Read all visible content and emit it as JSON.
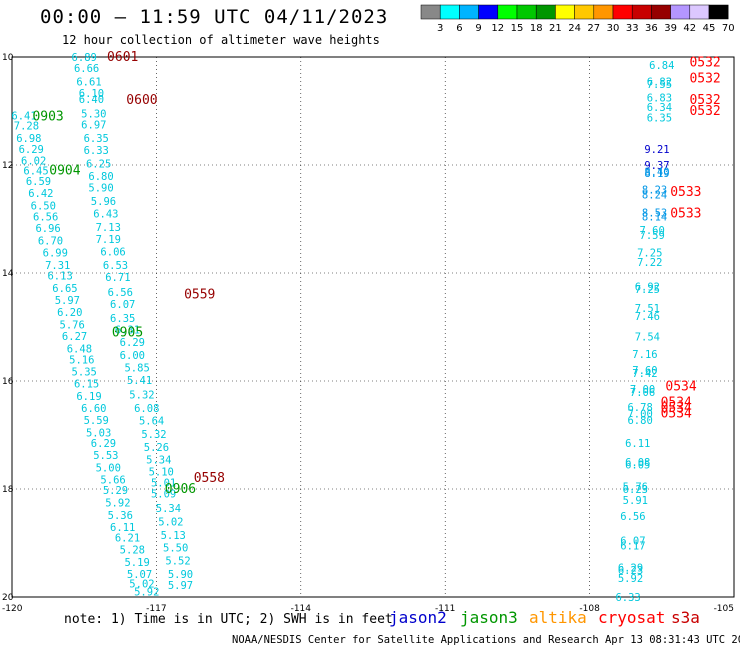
{
  "header": {
    "title": "00:00 – 11:59 UTC 04/11/2023",
    "subtitle": "12 hour collection of altimeter wave heights"
  },
  "legend": {
    "colors": [
      "#888888",
      "#00ffff",
      "#00b4ff",
      "#0000ff",
      "#00ff00",
      "#00c800",
      "#009600",
      "#ffff00",
      "#ffc800",
      "#ff9600",
      "#ff0000",
      "#c80000",
      "#960000",
      "#b496ff",
      "#dcc8ff",
      "#000000"
    ],
    "labels": [
      "3",
      "6",
      "9",
      "12",
      "15",
      "18",
      "21",
      "24",
      "27",
      "30",
      "33",
      "36",
      "39",
      "42",
      "45",
      "70",
      "(ft)"
    ]
  },
  "axes": {
    "lat_labels": [
      "10",
      "12",
      "14",
      "16",
      "18",
      "20"
    ],
    "lon_labels": [
      "-120",
      "-117",
      "-114",
      "-111",
      "-108",
      "-105"
    ]
  },
  "footnote": "note:  1) Time is in UTC; 2) SWH is in feet",
  "satellites": [
    {
      "name": "jason2",
      "color": "#0000cc"
    },
    {
      "name": "jason3",
      "color": "#009600"
    },
    {
      "name": "altika",
      "color": "#ff9600"
    },
    {
      "name": "cryosat",
      "color": "#ff0000"
    },
    {
      "name": "s3a",
      "color": "#c80000"
    }
  ],
  "credit": "NOAA/NESDIS Center for Satellite Applications and Research   Apr 13 08:31:43 UTC 2023",
  "map_data": {
    "time_labels": [
      {
        "text": "0601",
        "lat": 10.0,
        "lon": -117.7,
        "color": "#960000"
      },
      {
        "text": "0600",
        "lat": 10.8,
        "lon": -117.3,
        "color": "#960000"
      },
      {
        "text": "0903",
        "lat": 11.1,
        "lon": -119.25,
        "color": "#009600"
      },
      {
        "text": "0904",
        "lat": 12.1,
        "lon": -118.9,
        "color": "#009600"
      },
      {
        "text": "0559",
        "lat": 14.4,
        "lon": -116.1,
        "color": "#960000"
      },
      {
        "text": "0905",
        "lat": 15.1,
        "lon": -117.6,
        "color": "#009600"
      },
      {
        "text": "0558",
        "lat": 17.8,
        "lon": -115.9,
        "color": "#960000"
      },
      {
        "text": "0906",
        "lat": 18.0,
        "lon": -116.5,
        "color": "#009600"
      },
      {
        "text": "0532",
        "lat": 10.1,
        "lon": -105.6,
        "color": "#ff0000"
      },
      {
        "text": "0532",
        "lat": 10.4,
        "lon": -105.6,
        "color": "#ff0000"
      },
      {
        "text": "0532",
        "lat": 10.8,
        "lon": -105.6,
        "color": "#ff0000"
      },
      {
        "text": "0532",
        "lat": 11.0,
        "lon": -105.6,
        "color": "#ff0000"
      },
      {
        "text": "0533",
        "lat": 12.5,
        "lon": -106.0,
        "color": "#ff0000"
      },
      {
        "text": "0533",
        "lat": 12.9,
        "lon": -106.0,
        "color": "#ff0000"
      },
      {
        "text": "0534",
        "lat": 16.1,
        "lon": -106.1,
        "color": "#ff0000"
      },
      {
        "text": "0534",
        "lat": 16.4,
        "lon": -106.2,
        "color": "#ff0000"
      },
      {
        "text": "0534",
        "lat": 16.5,
        "lon": -106.2,
        "color": "#ff0000"
      },
      {
        "text": "0534",
        "lat": 16.6,
        "lon": -106.2,
        "color": "#ff0000"
      }
    ],
    "tracks": [
      {
        "name": "track-0601-0558",
        "color": "#00c8dc",
        "points": [
          {
            "v": "6.89",
            "lat": 10.0,
            "lon": -118.5
          },
          {
            "v": "6.66",
            "lat": 10.2,
            "lon": -118.45
          },
          {
            "v": "6.61",
            "lat": 10.45,
            "lon": -118.4
          },
          {
            "v": "6.10",
            "lat": 10.67,
            "lon": -118.35
          },
          {
            "v": "6.40",
            "lat": 10.78,
            "lon": -118.35
          },
          {
            "v": "5.30",
            "lat": 11.05,
            "lon": -118.3
          },
          {
            "v": "6.97",
            "lat": 11.25,
            "lon": -118.3
          },
          {
            "v": "6.35",
            "lat": 11.5,
            "lon": -118.25
          },
          {
            "v": "6.33",
            "lat": 11.72,
            "lon": -118.25
          },
          {
            "v": "6.25",
            "lat": 11.97,
            "lon": -118.2
          },
          {
            "v": "6.80",
            "lat": 12.2,
            "lon": -118.15
          },
          {
            "v": "5.90",
            "lat": 12.42,
            "lon": -118.15
          },
          {
            "v": "5.96",
            "lat": 12.67,
            "lon": -118.1
          },
          {
            "v": "6.43",
            "lat": 12.9,
            "lon": -118.05
          },
          {
            "v": "7.13",
            "lat": 13.15,
            "lon": -118.0
          },
          {
            "v": "7.19",
            "lat": 13.37,
            "lon": -118.0
          },
          {
            "v": "6.06",
            "lat": 13.6,
            "lon": -117.9
          },
          {
            "v": "6.53",
            "lat": 13.85,
            "lon": -117.85
          },
          {
            "v": "6.71",
            "lat": 14.07,
            "lon": -117.8
          },
          {
            "v": "6.56",
            "lat": 14.35,
            "lon": -117.75
          },
          {
            "v": "6.07",
            "lat": 14.57,
            "lon": -117.7
          },
          {
            "v": "6.35",
            "lat": 14.83,
            "lon": -117.7
          },
          {
            "v": "6.31",
            "lat": 15.05,
            "lon": -117.6
          },
          {
            "v": "6.29",
            "lat": 15.28,
            "lon": -117.5
          },
          {
            "v": "6.00",
            "lat": 15.52,
            "lon": -117.5
          },
          {
            "v": "5.85",
            "lat": 15.75,
            "lon": -117.4
          },
          {
            "v": "5.41",
            "lat": 15.98,
            "lon": -117.35
          },
          {
            "v": "5.32",
            "lat": 16.25,
            "lon": -117.3
          },
          {
            "v": "6.08",
            "lat": 16.5,
            "lon": -117.2
          },
          {
            "v": "5.64",
            "lat": 16.73,
            "lon": -117.1
          },
          {
            "v": "5.32",
            "lat": 16.98,
            "lon": -117.05
          },
          {
            "v": "5.26",
            "lat": 17.22,
            "lon": -117.0
          },
          {
            "v": "5.34",
            "lat": 17.45,
            "lon": -116.95
          },
          {
            "v": "5.10",
            "lat": 17.68,
            "lon": -116.9
          },
          {
            "v": "5.01",
            "lat": 17.88,
            "lon": -116.85
          },
          {
            "v": "5.09",
            "lat": 18.08,
            "lon": -116.85
          },
          {
            "v": "5.34",
            "lat": 18.35,
            "lon": -116.75
          },
          {
            "v": "5.02",
            "lat": 18.6,
            "lon": -116.7
          },
          {
            "v": "5.13",
            "lat": 18.85,
            "lon": -116.65
          },
          {
            "v": "5.50",
            "lat": 19.08,
            "lon": -116.6
          },
          {
            "v": "5.52",
            "lat": 19.32,
            "lon": -116.55
          },
          {
            "v": "5.90",
            "lat": 19.57,
            "lon": -116.5
          },
          {
            "v": "5.97",
            "lat": 19.78,
            "lon": -116.5
          }
        ]
      },
      {
        "name": "track-0903-0906",
        "color": "#00c8dc",
        "points": [
          {
            "v": "6.41",
            "lat": 11.08,
            "lon": -119.75
          },
          {
            "v": "7.28",
            "lat": 11.27,
            "lon": -119.7
          },
          {
            "v": "6.98",
            "lat": 11.5,
            "lon": -119.65
          },
          {
            "v": "6.29",
            "lat": 11.7,
            "lon": -119.6
          },
          {
            "v": "6.02",
            "lat": 11.92,
            "lon": -119.55
          },
          {
            "v": "6.45",
            "lat": 12.1,
            "lon": -119.5
          },
          {
            "v": "6.59",
            "lat": 12.3,
            "lon": -119.45
          },
          {
            "v": "6.42",
            "lat": 12.52,
            "lon": -119.4
          },
          {
            "v": "6.50",
            "lat": 12.75,
            "lon": -119.35
          },
          {
            "v": "6.56",
            "lat": 12.95,
            "lon": -119.3
          },
          {
            "v": "6.96",
            "lat": 13.17,
            "lon": -119.25
          },
          {
            "v": "6.70",
            "lat": 13.4,
            "lon": -119.2
          },
          {
            "v": "6.99",
            "lat": 13.62,
            "lon": -119.1
          },
          {
            "v": "7.31",
            "lat": 13.85,
            "lon": -119.05
          },
          {
            "v": "6.13",
            "lat": 14.05,
            "lon": -119.0
          },
          {
            "v": "6.65",
            "lat": 14.28,
            "lon": -118.9
          },
          {
            "v": "5.97",
            "lat": 14.5,
            "lon": -118.85
          },
          {
            "v": "6.20",
            "lat": 14.72,
            "lon": -118.8
          },
          {
            "v": "5.76",
            "lat": 14.95,
            "lon": -118.75
          },
          {
            "v": "6.27",
            "lat": 15.17,
            "lon": -118.7
          },
          {
            "v": "6.48",
            "lat": 15.4,
            "lon": -118.6
          },
          {
            "v": "5.16",
            "lat": 15.6,
            "lon": -118.55
          },
          {
            "v": "5.35",
            "lat": 15.82,
            "lon": -118.5
          },
          {
            "v": "6.15",
            "lat": 16.05,
            "lon": -118.45
          },
          {
            "v": "6.19",
            "lat": 16.28,
            "lon": -118.4
          },
          {
            "v": "6.60",
            "lat": 16.5,
            "lon": -118.3
          },
          {
            "v": "5.59",
            "lat": 16.72,
            "lon": -118.25
          },
          {
            "v": "5.03",
            "lat": 16.95,
            "lon": -118.2
          },
          {
            "v": "6.29",
            "lat": 17.15,
            "lon": -118.1
          },
          {
            "v": "5.53",
            "lat": 17.37,
            "lon": -118.05
          },
          {
            "v": "5.00",
            "lat": 17.6,
            "lon": -118.0
          },
          {
            "v": "5.66",
            "lat": 17.82,
            "lon": -117.9
          },
          {
            "v": "5.29",
            "lat": 18.02,
            "lon": -117.85
          },
          {
            "v": "5.92",
            "lat": 18.25,
            "lon": -117.8
          },
          {
            "v": "5.36",
            "lat": 18.48,
            "lon": -117.75
          },
          {
            "v": "6.11",
            "lat": 18.7,
            "lon": -117.7
          },
          {
            "v": "6.21",
            "lat": 18.9,
            "lon": -117.6
          },
          {
            "v": "5.28",
            "lat": 19.12,
            "lon": -117.5
          },
          {
            "v": "5.19",
            "lat": 19.35,
            "lon": -117.4
          },
          {
            "v": "5.07",
            "lat": 19.57,
            "lon": -117.35
          },
          {
            "v": "5.02",
            "lat": 19.75,
            "lon": -117.3
          },
          {
            "v": "5.92",
            "lat": 19.9,
            "lon": -117.2
          }
        ]
      },
      {
        "name": "track-0532",
        "color": "#00c8dc",
        "points": [
          {
            "v": "6.84",
            "lat": 10.15,
            "lon": -106.5
          },
          {
            "v": "6.82",
            "lat": 10.45,
            "lon": -106.55
          },
          {
            "v": "7.55",
            "lat": 10.5,
            "lon": -106.55
          },
          {
            "v": "6.83",
            "lat": 10.75,
            "lon": -106.55
          },
          {
            "v": "6.34",
            "lat": 10.93,
            "lon": -106.55
          },
          {
            "v": "6.35",
            "lat": 11.12,
            "lon": -106.55
          },
          {
            "v": "9.21",
            "lat": 11.7,
            "lon": -106.6
          },
          {
            "v": "9.37",
            "lat": 12.0,
            "lon": -106.6
          },
          {
            "v": "8.40",
            "lat": 12.12,
            "lon": -106.6
          },
          {
            "v": "8.19",
            "lat": 12.15,
            "lon": -106.6
          },
          {
            "v": "8.23",
            "lat": 12.45,
            "lon": -106.65
          },
          {
            "v": "8.24",
            "lat": 12.55,
            "lon": -106.65
          },
          {
            "v": "8.53",
            "lat": 12.88,
            "lon": -106.65
          },
          {
            "v": "8.14",
            "lat": 12.95,
            "lon": -106.65
          },
          {
            "v": "7.60",
            "lat": 13.2,
            "lon": -106.7
          },
          {
            "v": "7.59",
            "lat": 13.3,
            "lon": -106.7
          },
          {
            "v": "7.25",
            "lat": 13.62,
            "lon": -106.75
          },
          {
            "v": "7.22",
            "lat": 13.8,
            "lon": -106.75
          },
          {
            "v": "6.92",
            "lat": 14.25,
            "lon": -106.8
          },
          {
            "v": "7.25",
            "lat": 14.3,
            "lon": -106.8
          },
          {
            "v": "7.51",
            "lat": 14.65,
            "lon": -106.8
          },
          {
            "v": "7.46",
            "lat": 14.8,
            "lon": -106.8
          },
          {
            "v": "7.54",
            "lat": 15.18,
            "lon": -106.8
          },
          {
            "v": "7.16",
            "lat": 15.5,
            "lon": -106.85
          },
          {
            "v": "7.60",
            "lat": 15.8,
            "lon": -106.85
          },
          {
            "v": "7.42",
            "lat": 15.85,
            "lon": -106.85
          },
          {
            "v": "7.00",
            "lat": 16.15,
            "lon": -106.9
          },
          {
            "v": "7.06",
            "lat": 16.2,
            "lon": -106.9
          },
          {
            "v": "6.78",
            "lat": 16.48,
            "lon": -106.95
          },
          {
            "v": "7.00",
            "lat": 16.6,
            "lon": -106.95
          },
          {
            "v": "6.80",
            "lat": 16.72,
            "lon": -106.95
          },
          {
            "v": "6.11",
            "lat": 17.15,
            "lon": -107.0
          },
          {
            "v": "6.08",
            "lat": 17.5,
            "lon": -107.0
          },
          {
            "v": "6.05",
            "lat": 17.55,
            "lon": -107.0
          },
          {
            "v": "5.76",
            "lat": 17.95,
            "lon": -107.05
          },
          {
            "v": "6.23",
            "lat": 18.0,
            "lon": -107.05
          },
          {
            "v": "5.91",
            "lat": 18.2,
            "lon": -107.05
          },
          {
            "v": "6.56",
            "lat": 18.5,
            "lon": -107.1
          },
          {
            "v": "6.07",
            "lat": 18.95,
            "lon": -107.1
          },
          {
            "v": "6.17",
            "lat": 19.05,
            "lon": -107.1
          },
          {
            "v": "6.29",
            "lat": 19.45,
            "lon": -107.15
          },
          {
            "v": "6.23",
            "lat": 19.5,
            "lon": -107.15
          },
          {
            "v": "5.92",
            "lat": 19.65,
            "lon": -107.15
          },
          {
            "v": "6.33",
            "lat": 20.0,
            "lon": -107.2
          }
        ]
      }
    ]
  }
}
